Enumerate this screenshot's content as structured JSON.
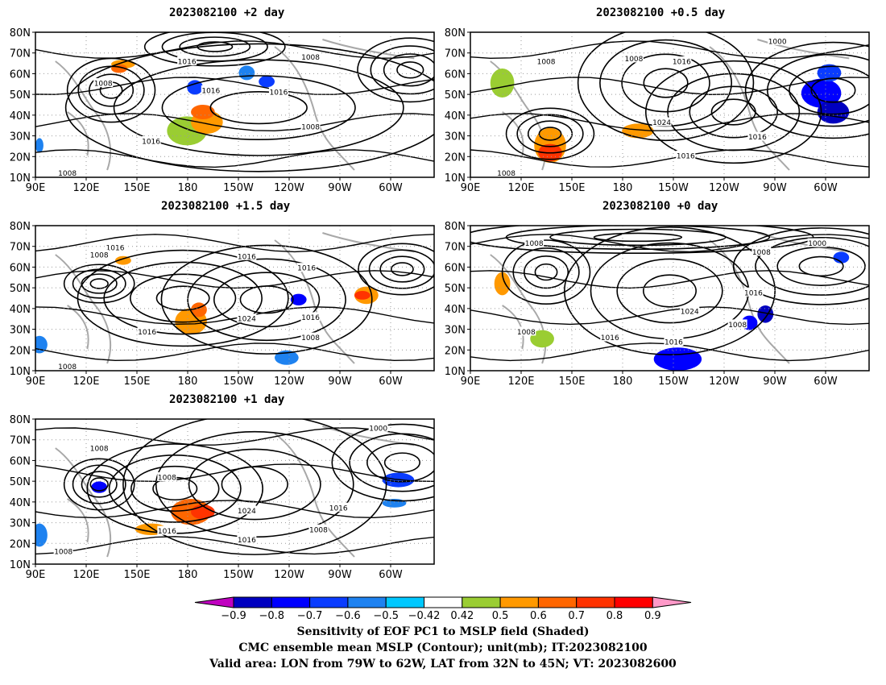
{
  "chart_data": [
    {
      "type": "heatmap",
      "title": "2023082100 +2 day",
      "lat_ticks": [
        "80N",
        "70N",
        "60N",
        "50N",
        "40N",
        "30N",
        "20N",
        "10N"
      ],
      "lon_ticks": [
        "90E",
        "120E",
        "150E",
        "180",
        "150W",
        "120W",
        "90W",
        "60W"
      ],
      "contour_labels": [
        "1016",
        "1008",
        "1008",
        "1016",
        "1016",
        "1008",
        "1016",
        "1008"
      ]
    },
    {
      "type": "heatmap",
      "title": "2023082100 +0.5 day",
      "lat_ticks": [
        "80N",
        "70N",
        "60N",
        "50N",
        "40N",
        "30N",
        "20N",
        "10N"
      ],
      "lon_ticks": [
        "90E",
        "120E",
        "150E",
        "180",
        "150W",
        "120W",
        "90W",
        "60W"
      ],
      "contour_labels": [
        "1000",
        "1008",
        "1008",
        "1016",
        "1024",
        "1016",
        "1016",
        "1008"
      ]
    },
    {
      "type": "heatmap",
      "title": "2023082100 +1.5 day",
      "lat_ticks": [
        "80N",
        "70N",
        "60N",
        "50N",
        "40N",
        "30N",
        "20N",
        "10N"
      ],
      "lon_ticks": [
        "90E",
        "120E",
        "150E",
        "180",
        "150W",
        "120W",
        "90W",
        "60W"
      ],
      "contour_labels": [
        "1016",
        "1008",
        "1016",
        "1016",
        "1024",
        "1016",
        "1016",
        "1008",
        "1008"
      ]
    },
    {
      "type": "heatmap",
      "title": "2023082100 +0 day",
      "lat_ticks": [
        "80N",
        "70N",
        "60N",
        "50N",
        "40N",
        "30N",
        "20N",
        "10N"
      ],
      "lon_ticks": [
        "90E",
        "120E",
        "150E",
        "180",
        "150W",
        "120W",
        "90W",
        "60W"
      ],
      "contour_labels": [
        "1008",
        "1008",
        "1000",
        "1016",
        "1024",
        "1016",
        "1016",
        "1008",
        "1008"
      ]
    },
    {
      "type": "heatmap",
      "title": "2023082100 +1 day",
      "lat_ticks": [
        "80N",
        "70N",
        "60N",
        "50N",
        "40N",
        "30N",
        "20N",
        "10N"
      ],
      "lon_ticks": [
        "90E",
        "120E",
        "150E",
        "180",
        "150W",
        "120W",
        "90W",
        "60W"
      ],
      "contour_labels": [
        "1000",
        "1008",
        "1008",
        "1024",
        "1016",
        "1016",
        "1016",
        "1008",
        "1008"
      ]
    }
  ],
  "colorbar": {
    "ticks": [
      "−0.9",
      "−0.8",
      "−0.7",
      "−0.6",
      "−0.5",
      "−0.42",
      "0.42",
      "0.5",
      "0.6",
      "0.7",
      "0.8",
      "0.9"
    ],
    "colors": [
      "#c000c0",
      "#0000c0",
      "#0000ff",
      "#0a3cff",
      "#1e82f0",
      "#00c8ff",
      "#ffffff",
      "#9acd32",
      "#ff9900",
      "#ff6600",
      "#ff3300",
      "#ff0000",
      "#ff99c8"
    ]
  },
  "caption": {
    "line1": "Sensitivity of EOF PC1 to MSLP field (Shaded)",
    "line2": "CMC ensemble mean MSLP (Contour); unit(mb); IT:2023082100",
    "line3": "Valid area: LON from 79W to 62W, LAT from 32N to 45N; VT: 2023082600"
  }
}
